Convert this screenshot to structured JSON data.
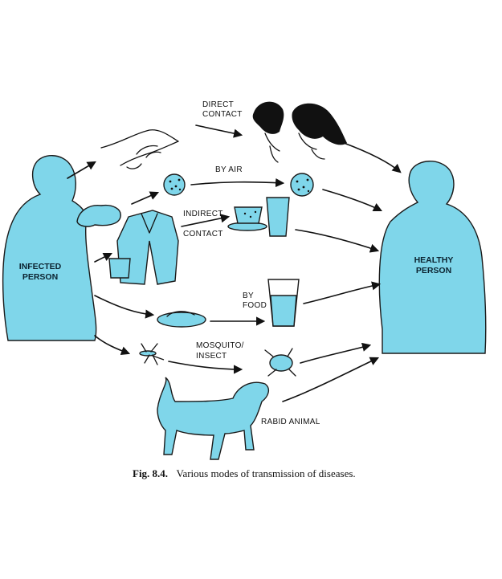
{
  "nodes": {
    "infected": {
      "line1": "INFECTED",
      "line2": "PERSON"
    },
    "healthy": {
      "line1": "HEALTHY",
      "line2": "PERSON"
    }
  },
  "routes": {
    "direct_contact": {
      "line1": "DIRECT",
      "line2": "CONTACT"
    },
    "by_air": "BY AIR",
    "indirect_contact": {
      "line1": "INDIRECT",
      "line2": "CONTACT"
    },
    "by_food": {
      "line1": "BY",
      "line2": "FOOD"
    },
    "mosquito_insect": {
      "line1": "MOSQUITO/",
      "line2": "INSECT"
    },
    "rabid_animal": "RABID ANIMAL"
  },
  "caption": {
    "figure_number": "Fig. 8.4.",
    "text": "Various modes of transmission of diseases."
  },
  "colors": {
    "figure_fill": "#7fd6ea",
    "outline": "#1a1a1a"
  }
}
